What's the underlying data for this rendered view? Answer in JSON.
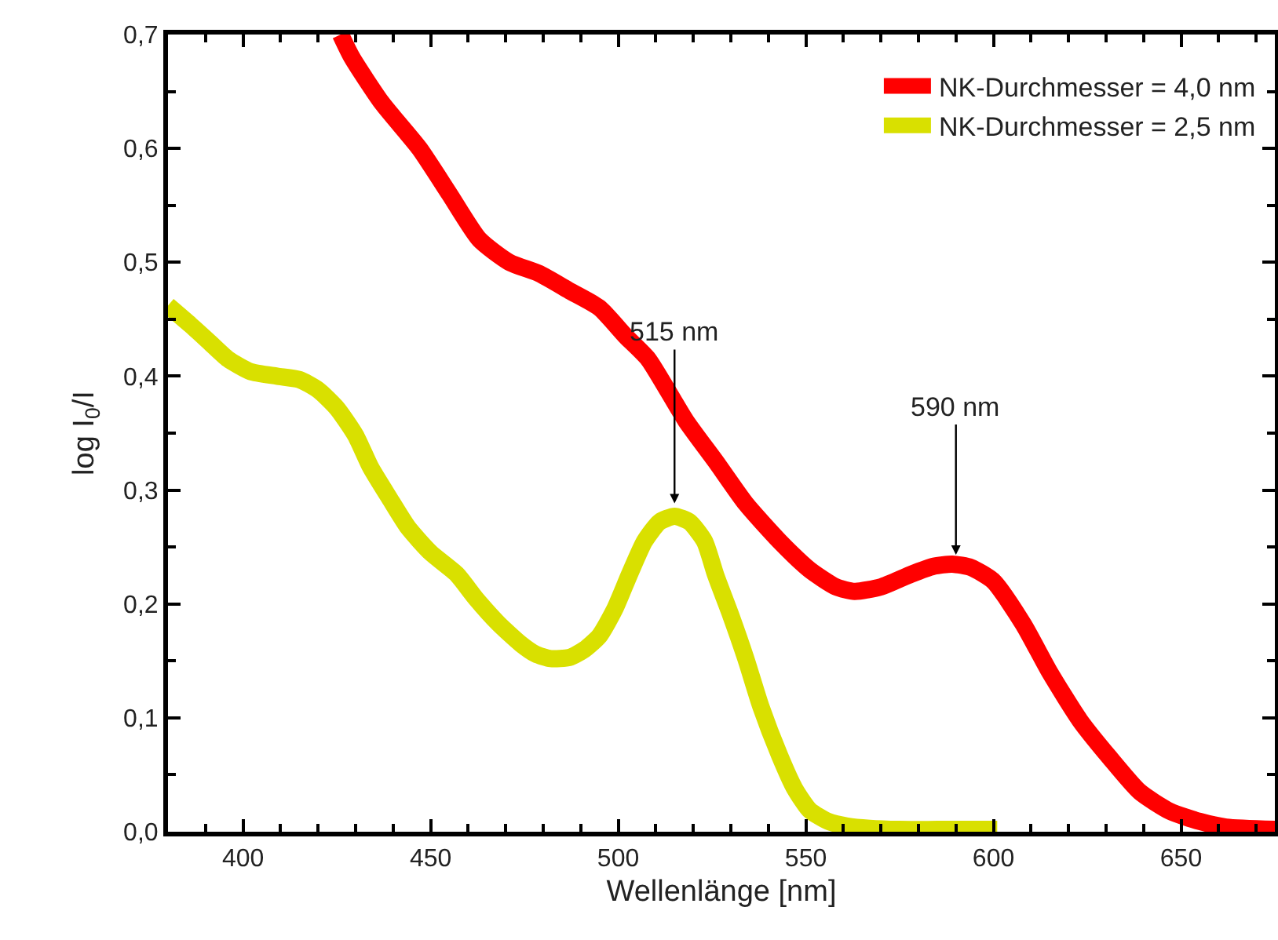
{
  "chart_data": {
    "type": "line",
    "xlabel": "Wellenlänge [nm]",
    "ylabel": "log I$_{0}$/I",
    "xlim": [
      380,
      675
    ],
    "xticks": [
      400,
      450,
      500,
      550,
      600,
      650
    ],
    "ylim": [
      0,
      0.7
    ],
    "yticks": [
      {
        "value": 0,
        "label": "0,0"
      },
      {
        "value": 0.1,
        "label": "0,1"
      },
      {
        "value": 0.2,
        "label": "0,2"
      },
      {
        "value": 0.3,
        "label": "0,3"
      },
      {
        "value": 0.4,
        "label": "0,4"
      },
      {
        "value": 0.5,
        "label": "0,5"
      },
      {
        "value": 0.6,
        "label": "0,6"
      },
      {
        "value": 0.7,
        "label": "0,7"
      }
    ],
    "grid": false,
    "legend": "top right",
    "annotations": [
      {
        "text": "515 nm",
        "x": 515,
        "y": 0.28
      },
      {
        "text": "590 nm",
        "x": 590,
        "y": 0.235
      }
    ],
    "series": [
      {
        "name": "NK-Durchmesser = 4,0 nm",
        "color": "#ff0000",
        "x": [
          426,
          429,
          437,
          447,
          455,
          463,
          471,
          479,
          487,
          495,
          502,
          508,
          518,
          526,
          534,
          543,
          551,
          558,
          563,
          570,
          578,
          584,
          589,
          594,
          600,
          608,
          615,
          623,
          631,
          639,
          647,
          655,
          662,
          675
        ],
        "values": [
          0.7,
          0.68,
          0.64,
          0.6,
          0.56,
          0.52,
          0.5,
          0.49,
          0.475,
          0.46,
          0.435,
          0.415,
          0.361,
          0.325,
          0.288,
          0.255,
          0.23,
          0.215,
          0.211,
          0.215,
          0.226,
          0.233,
          0.235,
          0.232,
          0.22,
          0.182,
          0.14,
          0.098,
          0.065,
          0.035,
          0.018,
          0.009,
          0.004,
          0.002
        ]
      },
      {
        "name": "NK-Durchmesser = 2,5 nm",
        "color": "#d9e000",
        "x": [
          380,
          386,
          391,
          396,
          402,
          409,
          415,
          420,
          425,
          430,
          434,
          439,
          444,
          450,
          457,
          462,
          468,
          474,
          478,
          482,
          487,
          491,
          495,
          499,
          503,
          507,
          511,
          515,
          519,
          523,
          526,
          530,
          534,
          538,
          543,
          547,
          551,
          556,
          561,
          567,
          575,
          585,
          595,
          601
        ],
        "values": [
          0.462,
          0.445,
          0.43,
          0.415,
          0.404,
          0.4,
          0.397,
          0.388,
          0.372,
          0.348,
          0.32,
          0.293,
          0.267,
          0.245,
          0.226,
          0.205,
          0.183,
          0.165,
          0.156,
          0.152,
          0.153,
          0.16,
          0.172,
          0.195,
          0.226,
          0.255,
          0.272,
          0.277,
          0.272,
          0.255,
          0.225,
          0.19,
          0.152,
          0.11,
          0.067,
          0.038,
          0.019,
          0.009,
          0.005,
          0.003,
          0.002,
          0.002,
          0.002,
          0.002
        ]
      }
    ]
  }
}
